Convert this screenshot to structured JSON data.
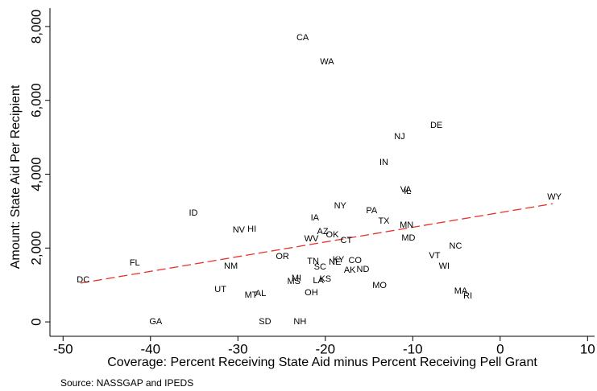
{
  "chart_data": {
    "type": "scatter",
    "x_label": "Coverage: Percent Receiving State Aid minus Percent Receiving Pell Grant",
    "y_label": "Amount: State Aid Per Recipient",
    "source": "Source: NASSGAP and IPEDS",
    "labels": [
      "CA",
      "WA",
      "DE",
      "NJ",
      "IN",
      "VA",
      "IL",
      "WY",
      "NY",
      "PA",
      "ID",
      "IA",
      "TX",
      "MN",
      "NV",
      "HI",
      "AZ",
      "OK",
      "WV",
      "MD",
      "CT",
      "NC",
      "OR",
      "VT",
      "FL",
      "TN",
      "KY",
      "CO",
      "NE",
      "SC",
      "WI",
      "NM",
      "AK",
      "ND",
      "DC",
      "MI",
      "MS",
      "KS",
      "LA",
      "MO",
      "UT",
      "AL",
      "MT",
      "OH",
      "MA",
      "RI",
      "GA",
      "SD",
      "NH"
    ],
    "x": [
      -22.6,
      -19.8,
      -7.3,
      -11.5,
      -13.3,
      -10.8,
      -10.6,
      6.2,
      -18.3,
      -14.7,
      -35.1,
      -21.2,
      -13.3,
      -10.7,
      -29.9,
      -28.4,
      -20.3,
      -19.2,
      -21.6,
      -10.5,
      -17.6,
      -5.1,
      -24.9,
      -7.5,
      -41.8,
      -21.4,
      -18.5,
      -16.6,
      -18.9,
      -20.6,
      -6.4,
      -30.8,
      -17.2,
      -15.7,
      -47.7,
      -23.3,
      -23.6,
      -20.0,
      -20.8,
      -13.8,
      -32.0,
      -27.4,
      -28.5,
      -21.6,
      -4.5,
      -3.7,
      -39.4,
      -26.9,
      -22.9
    ],
    "values": [
      7690,
      7040,
      5320,
      5010,
      4310,
      3570,
      3530,
      3380,
      3140,
      3010,
      2940,
      2810,
      2720,
      2610,
      2480,
      2510,
      2440,
      2350,
      2240,
      2270,
      2200,
      2050,
      1760,
      1790,
      1590,
      1630,
      1680,
      1660,
      1610,
      1480,
      1500,
      1500,
      1390,
      1420,
      1130,
      1180,
      1090,
      1150,
      1110,
      980,
      870,
      760,
      720,
      780,
      830,
      700,
      0,
      0,
      0
    ],
    "fit": {
      "color": "#e8312a",
      "x": [
        -48,
        6
      ],
      "values": [
        1050,
        3200
      ]
    },
    "color": "#000000",
    "xlim": [
      -51.5,
      10.8
    ],
    "ylim": [
      -390,
      8500
    ],
    "xticks": [
      -50,
      -40,
      -30,
      -20,
      -10,
      0,
      10
    ],
    "yticks": [
      0,
      {
        "value": 2000,
        "label": "2,000"
      },
      {
        "value": 4000,
        "label": "4,000"
      },
      {
        "value": 6000,
        "label": "6,000"
      },
      {
        "value": 8000,
        "label": "8,000"
      }
    ]
  }
}
